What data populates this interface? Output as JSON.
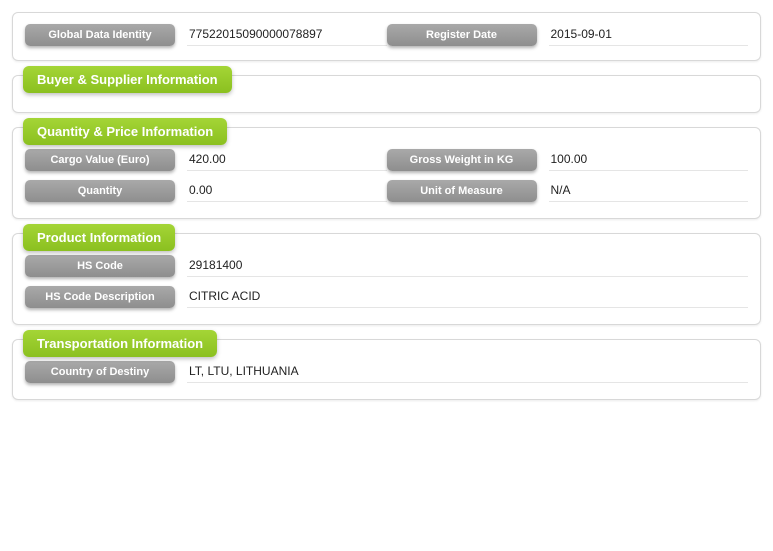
{
  "topPanel": {
    "fields": [
      {
        "label": "Global Data Identity",
        "value": "77522015090000078897"
      },
      {
        "label": "Register Date",
        "value": "2015-09-01"
      }
    ]
  },
  "sections": [
    {
      "title": "Buyer & Supplier Information",
      "rows": []
    },
    {
      "title": "Quantity & Price Information",
      "rows": [
        [
          {
            "label": "Cargo Value (Euro)",
            "value": "420.00"
          },
          {
            "label": "Gross Weight in KG",
            "value": "100.00"
          }
        ],
        [
          {
            "label": "Quantity",
            "value": "0.00"
          },
          {
            "label": "Unit of Measure",
            "value": "N/A"
          }
        ]
      ]
    },
    {
      "title": "Product Information",
      "rows": [
        [
          {
            "label": "HS Code",
            "value": "29181400"
          }
        ],
        [
          {
            "label": "HS Code Description",
            "value": "CITRIC ACID"
          }
        ]
      ]
    },
    {
      "title": "Transportation Information",
      "rows": [
        [
          {
            "label": "Country of Destiny",
            "value": "LT, LTU, LITHUANIA"
          }
        ]
      ]
    }
  ]
}
